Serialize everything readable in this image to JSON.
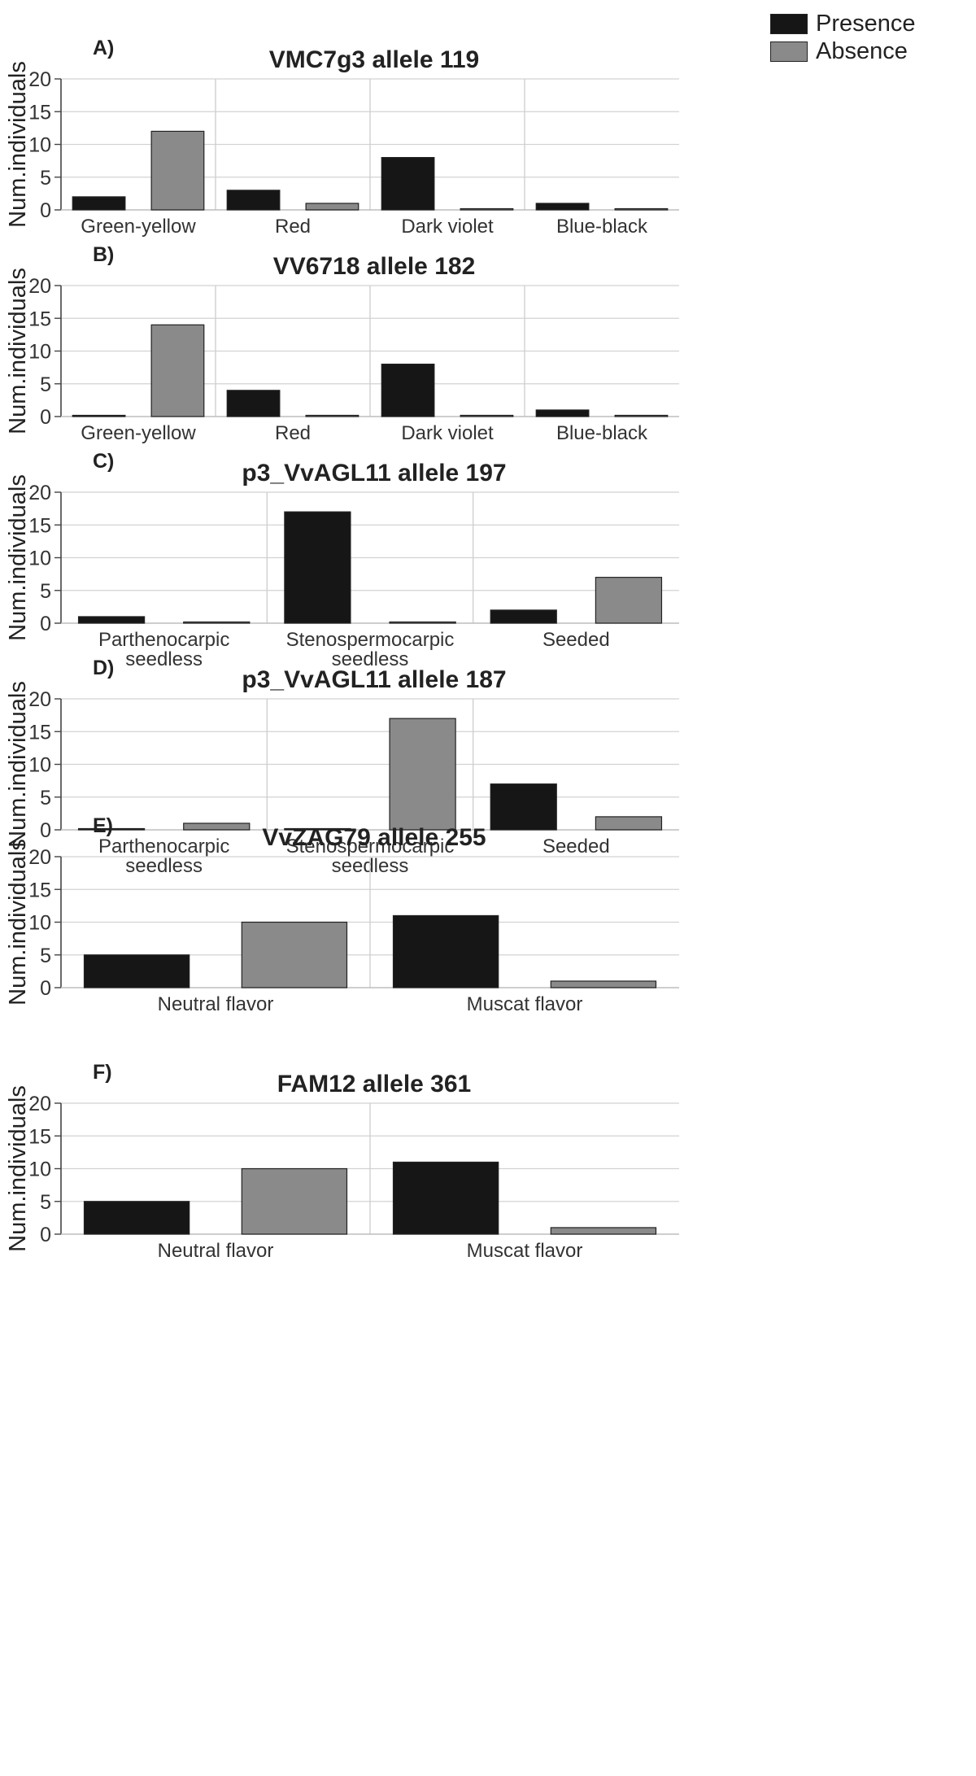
{
  "legend": {
    "presence": {
      "label": "Presence",
      "color": "#161616"
    },
    "absence": {
      "label": "Absence",
      "color": "#8a8a8a"
    }
  },
  "chart_data": [
    {
      "type": "bar",
      "panel": "A)",
      "title": "VMC7g3 allele 119",
      "ylabel": "Num.individuals",
      "ylim": [
        0,
        20
      ],
      "yticks": [
        "0",
        "5",
        "10",
        "15",
        "20"
      ],
      "categories": [
        "Green-yellow",
        "Red",
        "Dark violet",
        "Blue-black"
      ],
      "series": [
        {
          "name": "Presence",
          "values": [
            2,
            3,
            8,
            1
          ]
        },
        {
          "name": "Absence",
          "values": [
            12,
            1,
            0,
            0
          ]
        }
      ]
    },
    {
      "type": "bar",
      "panel": "B)",
      "title": "VV6718 allele 182",
      "ylabel": "Num.individuals",
      "ylim": [
        0,
        20
      ],
      "yticks": [
        "0",
        "5",
        "10",
        "15",
        "20"
      ],
      "categories": [
        "Green-yellow",
        "Red",
        "Dark violet",
        "Blue-black"
      ],
      "series": [
        {
          "name": "Presence",
          "values": [
            0,
            4,
            8,
            1
          ]
        },
        {
          "name": "Absence",
          "values": [
            14,
            0,
            0,
            0
          ]
        }
      ]
    },
    {
      "type": "bar",
      "panel": "C)",
      "title": "p3_VvAGL11 allele 197",
      "ylabel": "Num.individuals",
      "ylim": [
        0,
        20
      ],
      "yticks": [
        "0",
        "5",
        "10",
        "15",
        "20"
      ],
      "categories": [
        "Parthenocarpic seedless",
        "Stenospermocarpic seedless",
        "Seeded"
      ],
      "category_lines": [
        [
          "Parthenocarpic",
          "seedless"
        ],
        [
          "Stenospermocarpic",
          "seedless"
        ],
        [
          "Seeded"
        ]
      ],
      "series": [
        {
          "name": "Presence",
          "values": [
            1,
            17,
            2
          ]
        },
        {
          "name": "Absence",
          "values": [
            0,
            0,
            7
          ]
        }
      ]
    },
    {
      "type": "bar",
      "panel": "D)",
      "title": "p3_VvAGL11 allele 187",
      "ylabel": "Num.individuals",
      "ylim": [
        0,
        20
      ],
      "yticks": [
        "0",
        "5",
        "10",
        "15",
        "20"
      ],
      "categories": [
        "Parthenocarpic seedless",
        "Stenospermocarpic seedless",
        "Seeded"
      ],
      "category_lines": [
        [
          "Parthenocarpic",
          "seedless"
        ],
        [
          "Stenospermocarpic",
          "seedless"
        ],
        [
          "Seeded"
        ]
      ],
      "series": [
        {
          "name": "Presence",
          "values": [
            0,
            0,
            7
          ]
        },
        {
          "name": "Absence",
          "values": [
            1,
            17,
            2
          ]
        }
      ]
    },
    {
      "type": "bar",
      "panel": "E)",
      "title": "VvZAG79 allele 255",
      "ylabel": "Num.individuals",
      "ylim": [
        0,
        20
      ],
      "yticks": [
        "0",
        "5",
        "10",
        "15",
        "20"
      ],
      "categories": [
        "Neutral flavor",
        "Muscat flavor"
      ],
      "series": [
        {
          "name": "Presence",
          "values": [
            5,
            11
          ]
        },
        {
          "name": "Absence",
          "values": [
            10,
            1
          ]
        }
      ]
    },
    {
      "type": "bar",
      "panel": "F)",
      "title": "FAM12 allele 361",
      "ylabel": "Num.individuals",
      "ylim": [
        0,
        20
      ],
      "yticks": [
        "0",
        "5",
        "10",
        "15",
        "20"
      ],
      "categories": [
        "Neutral flavor",
        "Muscat flavor"
      ],
      "series": [
        {
          "name": "Presence",
          "values": [
            5,
            11
          ]
        },
        {
          "name": "Absence",
          "values": [
            10,
            1
          ]
        }
      ]
    }
  ]
}
